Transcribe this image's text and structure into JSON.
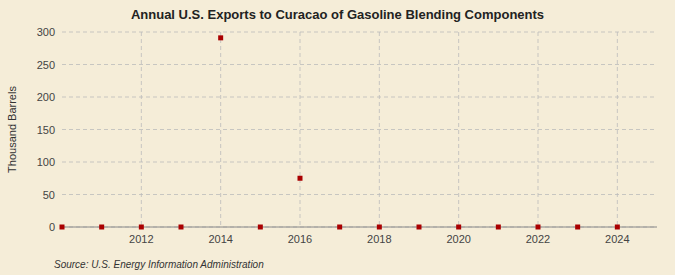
{
  "chart_data": {
    "type": "scatter",
    "title": "Annual U.S. Exports to Curacao of Gasoline Blending Components",
    "ylabel": "Thousand Barrels",
    "source": "Source: U.S. Energy Information Administration",
    "x": [
      2010,
      2011,
      2012,
      2013,
      2014,
      2015,
      2016,
      2017,
      2018,
      2019,
      2020,
      2021,
      2022,
      2023,
      2024
    ],
    "values": [
      0,
      0,
      0,
      0,
      291,
      0,
      75,
      0,
      0,
      0,
      0,
      0,
      0,
      0,
      0
    ],
    "color": "#aa0000",
    "marker": "square",
    "xlim": [
      2010.0,
      2025.0
    ],
    "ylim": [
      0,
      300
    ],
    "xticks": [
      2012,
      2014,
      2016,
      2018,
      2020,
      2022,
      2024
    ],
    "yticks": [
      0,
      50,
      100,
      150,
      200,
      250,
      300
    ],
    "grid": true
  }
}
